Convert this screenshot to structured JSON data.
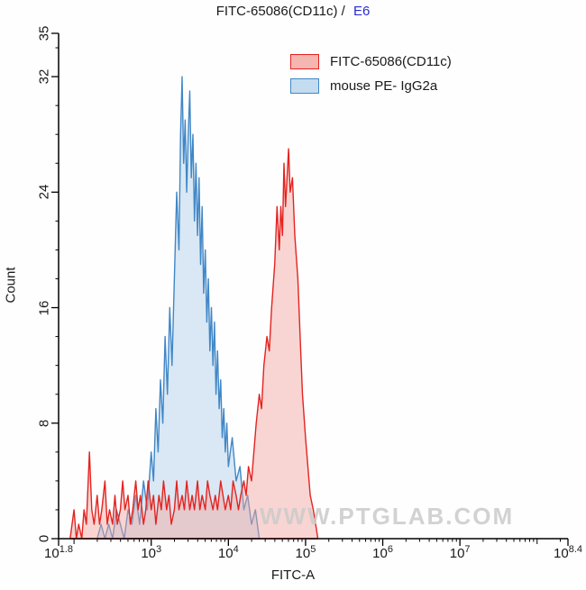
{
  "title": {
    "left": "FITC-65086(CD11c) /",
    "sample": "E6"
  },
  "colors": {
    "title_sample": "#2a2ad0",
    "axis": "#000000",
    "watermark": "#cbcbcb"
  },
  "watermark": "WWW.PTGLAB.COM",
  "chart_data": {
    "type": "area",
    "subtype": "flow-cytometry-histogram-overlay",
    "title": "FITC-65086(CD11c) / E6",
    "xlabel": "FITC-A",
    "ylabel": "Count",
    "x_scale": "log10",
    "xlim_log10": [
      1.8,
      8.4
    ],
    "ylim": [
      0,
      35
    ],
    "grid": false,
    "legend_position": "top-right-inside",
    "x_ticks": [
      {
        "exp": "1.8",
        "log10": 1.8
      },
      {
        "exp": "3",
        "log10": 3
      },
      {
        "exp": "4",
        "log10": 4
      },
      {
        "exp": "5",
        "log10": 5
      },
      {
        "exp": "6",
        "log10": 6
      },
      {
        "exp": "7",
        "log10": 7
      },
      {
        "exp": "8.4",
        "log10": 8.4
      }
    ],
    "y_ticks": [
      0,
      8,
      16,
      24,
      32,
      35
    ],
    "series": [
      {
        "name": "FITC-65086(CD11c)",
        "color": "#e42320",
        "fill": "#f2a39e",
        "fill_opacity": 0.45,
        "swatch_fill": "#f5b6b2",
        "peak_log10x": 4.78,
        "peak_count": 27,
        "points": [
          [
            1.95,
            0
          ],
          [
            2.0,
            2
          ],
          [
            2.03,
            0
          ],
          [
            2.06,
            1
          ],
          [
            2.1,
            0
          ],
          [
            2.13,
            2
          ],
          [
            2.16,
            1
          ],
          [
            2.2,
            6
          ],
          [
            2.23,
            2
          ],
          [
            2.26,
            1
          ],
          [
            2.3,
            3
          ],
          [
            2.33,
            1
          ],
          [
            2.36,
            2
          ],
          [
            2.4,
            4
          ],
          [
            2.43,
            1
          ],
          [
            2.46,
            2
          ],
          [
            2.5,
            1
          ],
          [
            2.53,
            3
          ],
          [
            2.56,
            1
          ],
          [
            2.6,
            2
          ],
          [
            2.63,
            4
          ],
          [
            2.66,
            2
          ],
          [
            2.7,
            3
          ],
          [
            2.73,
            1
          ],
          [
            2.76,
            2
          ],
          [
            2.8,
            4
          ],
          [
            2.83,
            2
          ],
          [
            2.86,
            3
          ],
          [
            2.9,
            1
          ],
          [
            2.93,
            2
          ],
          [
            2.96,
            4
          ],
          [
            3.0,
            2
          ],
          [
            3.03,
            3
          ],
          [
            3.06,
            1
          ],
          [
            3.1,
            3
          ],
          [
            3.13,
            2
          ],
          [
            3.16,
            4
          ],
          [
            3.2,
            2
          ],
          [
            3.23,
            3
          ],
          [
            3.26,
            1
          ],
          [
            3.3,
            2
          ],
          [
            3.33,
            4
          ],
          [
            3.36,
            2
          ],
          [
            3.4,
            3
          ],
          [
            3.43,
            2
          ],
          [
            3.46,
            4
          ],
          [
            3.5,
            2
          ],
          [
            3.53,
            3
          ],
          [
            3.56,
            2
          ],
          [
            3.6,
            4
          ],
          [
            3.63,
            2
          ],
          [
            3.66,
            3
          ],
          [
            3.7,
            2
          ],
          [
            3.73,
            4
          ],
          [
            3.76,
            3
          ],
          [
            3.8,
            2
          ],
          [
            3.83,
            3
          ],
          [
            3.86,
            2
          ],
          [
            3.9,
            4
          ],
          [
            3.93,
            3
          ],
          [
            3.96,
            2
          ],
          [
            4.0,
            3
          ],
          [
            4.03,
            2
          ],
          [
            4.06,
            4
          ],
          [
            4.1,
            3
          ],
          [
            4.13,
            2
          ],
          [
            4.16,
            3
          ],
          [
            4.2,
            4
          ],
          [
            4.23,
            3
          ],
          [
            4.26,
            5
          ],
          [
            4.3,
            4
          ],
          [
            4.33,
            6
          ],
          [
            4.36,
            8
          ],
          [
            4.4,
            10
          ],
          [
            4.43,
            9
          ],
          [
            4.46,
            12
          ],
          [
            4.5,
            14
          ],
          [
            4.53,
            13
          ],
          [
            4.56,
            16
          ],
          [
            4.6,
            19
          ],
          [
            4.63,
            23
          ],
          [
            4.66,
            20
          ],
          [
            4.68,
            23
          ],
          [
            4.7,
            21
          ],
          [
            4.72,
            26
          ],
          [
            4.74,
            23
          ],
          [
            4.76,
            25
          ],
          [
            4.78,
            27
          ],
          [
            4.8,
            24
          ],
          [
            4.83,
            25
          ],
          [
            4.86,
            21
          ],
          [
            4.9,
            18
          ],
          [
            4.93,
            14
          ],
          [
            4.96,
            10
          ],
          [
            5.0,
            7
          ],
          [
            5.03,
            5
          ],
          [
            5.06,
            3
          ],
          [
            5.1,
            2
          ],
          [
            5.13,
            1
          ],
          [
            5.16,
            0
          ]
        ]
      },
      {
        "name": "mouse PE- IgG2a",
        "color": "#4187c7",
        "fill": "#aecfe8",
        "fill_opacity": 0.45,
        "swatch_fill": "#c3dcef",
        "peak_log10x": 3.4,
        "peak_count": 32,
        "points": [
          [
            2.3,
            0
          ],
          [
            2.35,
            1
          ],
          [
            2.4,
            0
          ],
          [
            2.45,
            1
          ],
          [
            2.5,
            0
          ],
          [
            2.55,
            2
          ],
          [
            2.6,
            1
          ],
          [
            2.65,
            0
          ],
          [
            2.7,
            2
          ],
          [
            2.75,
            1
          ],
          [
            2.8,
            3
          ],
          [
            2.85,
            1
          ],
          [
            2.9,
            4
          ],
          [
            2.95,
            2
          ],
          [
            3.0,
            6
          ],
          [
            3.03,
            4
          ],
          [
            3.06,
            9
          ],
          [
            3.09,
            6
          ],
          [
            3.12,
            11
          ],
          [
            3.15,
            8
          ],
          [
            3.18,
            14
          ],
          [
            3.21,
            10
          ],
          [
            3.24,
            16
          ],
          [
            3.27,
            12
          ],
          [
            3.3,
            18
          ],
          [
            3.33,
            24
          ],
          [
            3.36,
            20
          ],
          [
            3.38,
            28
          ],
          [
            3.4,
            32
          ],
          [
            3.42,
            26
          ],
          [
            3.44,
            29
          ],
          [
            3.46,
            24
          ],
          [
            3.48,
            28
          ],
          [
            3.5,
            31
          ],
          [
            3.52,
            25
          ],
          [
            3.54,
            28
          ],
          [
            3.56,
            22
          ],
          [
            3.58,
            26
          ],
          [
            3.6,
            21
          ],
          [
            3.62,
            25
          ],
          [
            3.64,
            19
          ],
          [
            3.66,
            23
          ],
          [
            3.68,
            17
          ],
          [
            3.7,
            20
          ],
          [
            3.72,
            15
          ],
          [
            3.74,
            18
          ],
          [
            3.76,
            13
          ],
          [
            3.78,
            16
          ],
          [
            3.8,
            12
          ],
          [
            3.82,
            15
          ],
          [
            3.84,
            10
          ],
          [
            3.86,
            13
          ],
          [
            3.88,
            9
          ],
          [
            3.9,
            11
          ],
          [
            3.92,
            7
          ],
          [
            3.94,
            9
          ],
          [
            3.96,
            6
          ],
          [
            3.98,
            8
          ],
          [
            4.0,
            5
          ],
          [
            4.05,
            7
          ],
          [
            4.1,
            4
          ],
          [
            4.15,
            5
          ],
          [
            4.2,
            2
          ],
          [
            4.25,
            3
          ],
          [
            4.3,
            1
          ],
          [
            4.35,
            2
          ],
          [
            4.4,
            0
          ]
        ]
      }
    ]
  }
}
